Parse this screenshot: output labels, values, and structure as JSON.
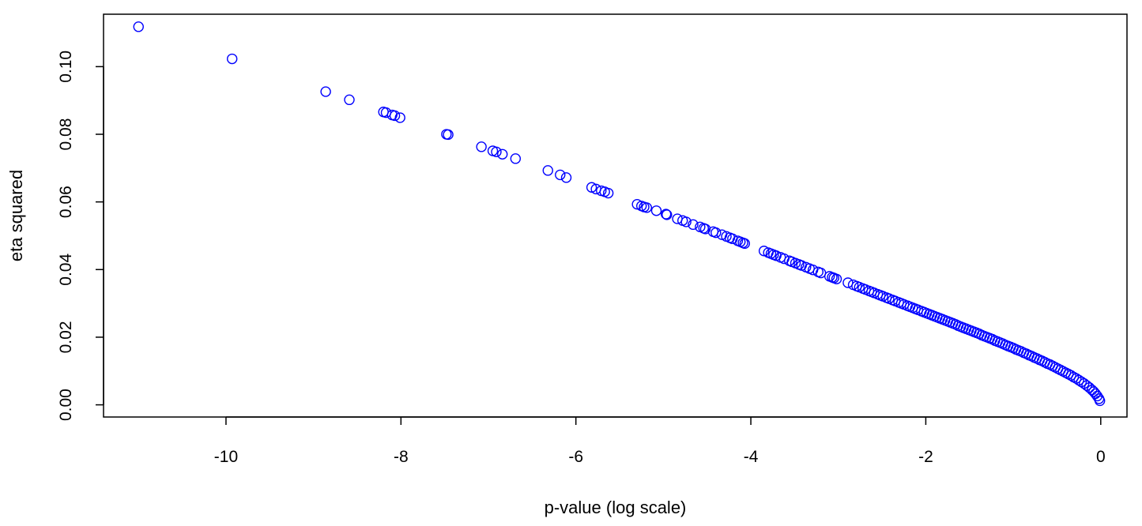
{
  "chart_data": {
    "type": "scatter",
    "xlabel": "p-value (log scale)",
    "ylabel": "eta squared",
    "xlim": [
      -11.4,
      0.3
    ],
    "ylim": [
      -0.0036,
      0.1155
    ],
    "x_ticks": [
      {
        "value": -10,
        "label": "-10"
      },
      {
        "value": -8,
        "label": "-8"
      },
      {
        "value": -6,
        "label": "-6"
      },
      {
        "value": -4,
        "label": "-4"
      },
      {
        "value": -2,
        "label": "-2"
      },
      {
        "value": 0,
        "label": "0"
      }
    ],
    "y_ticks": [
      {
        "value": 0.0,
        "label": "0.00"
      },
      {
        "value": 0.02,
        "label": "0.02"
      },
      {
        "value": 0.04,
        "label": "0.04"
      },
      {
        "value": 0.06,
        "label": "0.06"
      },
      {
        "value": 0.08,
        "label": "0.08"
      },
      {
        "value": 0.1,
        "label": "0.10"
      }
    ],
    "marker": "open-circle",
    "color": "#0000ff",
    "points": [
      [
        -11.0,
        0.1118
      ],
      [
        -9.93,
        0.1023
      ],
      [
        -8.86,
        0.0926
      ],
      [
        -8.59,
        0.0902
      ],
      [
        -8.2,
        0.0866
      ],
      [
        -8.17,
        0.0864
      ],
      [
        -8.1,
        0.0857
      ],
      [
        -8.07,
        0.0855
      ],
      [
        -8.01,
        0.0849
      ],
      [
        -7.48,
        0.08
      ],
      [
        -7.46,
        0.0799
      ],
      [
        -7.08,
        0.0763
      ],
      [
        -6.95,
        0.0751
      ],
      [
        -6.91,
        0.0748
      ],
      [
        -6.84,
        0.0741
      ],
      [
        -6.69,
        0.0728
      ],
      [
        -6.32,
        0.0693
      ],
      [
        -6.18,
        0.068
      ],
      [
        -6.11,
        0.0672
      ],
      [
        -5.82,
        0.0643
      ],
      [
        -5.77,
        0.0638
      ],
      [
        -5.71,
        0.0633
      ],
      [
        -5.67,
        0.063
      ],
      [
        -5.63,
        0.0626
      ],
      [
        -5.3,
        0.0593
      ],
      [
        -5.25,
        0.0588
      ],
      [
        -5.22,
        0.0585
      ],
      [
        -5.19,
        0.0583
      ],
      [
        -5.08,
        0.0574
      ],
      [
        -4.97,
        0.0564
      ],
      [
        -4.96,
        0.0562
      ],
      [
        -4.84,
        0.055
      ],
      [
        -4.78,
        0.0545
      ],
      [
        -4.74,
        0.0541
      ],
      [
        -4.66,
        0.0533
      ],
      [
        -4.58,
        0.0526
      ],
      [
        -4.54,
        0.0522
      ],
      [
        -4.52,
        0.052
      ],
      [
        -4.43,
        0.0512
      ],
      [
        -4.4,
        0.0509
      ],
      [
        -4.33,
        0.0503
      ],
      [
        -4.28,
        0.0498
      ],
      [
        -4.24,
        0.0494
      ],
      [
        -4.21,
        0.0491
      ],
      [
        -4.15,
        0.0485
      ],
      [
        -4.12,
        0.0482
      ],
      [
        -4.09,
        0.0479
      ],
      [
        -4.07,
        0.0477
      ],
      [
        -3.85,
        0.0455
      ],
      [
        -3.8,
        0.045
      ],
      [
        -3.77,
        0.0447
      ],
      [
        -3.74,
        0.0444
      ],
      [
        -3.71,
        0.0441
      ],
      [
        -3.66,
        0.0436
      ],
      [
        -3.62,
        0.0432
      ],
      [
        -3.56,
        0.0426
      ],
      [
        -3.53,
        0.0423
      ],
      [
        -3.49,
        0.0419
      ],
      [
        -3.45,
        0.0415
      ],
      [
        -3.42,
        0.0412
      ],
      [
        -3.37,
        0.0407
      ],
      [
        -3.33,
        0.0403
      ],
      [
        -3.29,
        0.0399
      ],
      [
        -3.23,
        0.0393
      ],
      [
        -3.2,
        0.039
      ],
      [
        -3.1,
        0.038
      ],
      [
        -3.07,
        0.0377
      ],
      [
        -3.05,
        0.0375
      ],
      [
        -3.02,
        0.0372
      ],
      [
        -2.89,
        0.0361
      ],
      [
        -2.83,
        0.0355
      ],
      [
        -2.79,
        0.0351
      ],
      [
        -2.76,
        0.0348
      ],
      [
        -2.72,
        0.0344
      ],
      [
        -2.69,
        0.0341
      ],
      [
        -2.65,
        0.0337
      ],
      [
        -2.62,
        0.0334
      ],
      [
        -2.59,
        0.0331
      ],
      [
        -2.55,
        0.0327
      ],
      [
        -2.52,
        0.0324
      ],
      [
        -2.49,
        0.0321
      ],
      [
        -2.45,
        0.0317
      ],
      [
        -2.42,
        0.0314
      ],
      [
        -2.38,
        0.031
      ],
      [
        -2.35,
        0.0307
      ],
      [
        -2.31,
        0.0303
      ],
      [
        -2.28,
        0.03
      ],
      [
        -2.25,
        0.0297
      ],
      [
        -2.21,
        0.0293
      ],
      [
        -2.18,
        0.029
      ],
      [
        -2.15,
        0.0287
      ],
      [
        -2.12,
        0.0284
      ],
      [
        -2.09,
        0.0281
      ],
      [
        -2.05,
        0.0277
      ],
      [
        -2.02,
        0.0274
      ],
      [
        -1.99,
        0.0271
      ],
      [
        -1.96,
        0.0268
      ],
      [
        -1.93,
        0.0265
      ],
      [
        -1.9,
        0.0262
      ],
      [
        -1.87,
        0.0259
      ],
      [
        -1.84,
        0.0256
      ],
      [
        -1.81,
        0.0253
      ],
      [
        -1.78,
        0.025
      ],
      [
        -1.75,
        0.0247
      ],
      [
        -1.72,
        0.0244
      ],
      [
        -1.69,
        0.0241
      ],
      [
        -1.66,
        0.0238
      ],
      [
        -1.63,
        0.0234
      ],
      [
        -1.6,
        0.0231
      ],
      [
        -1.57,
        0.0228
      ],
      [
        -1.54,
        0.0225
      ],
      [
        -1.51,
        0.0222
      ],
      [
        -1.48,
        0.0219
      ],
      [
        -1.45,
        0.0216
      ],
      [
        -1.42,
        0.0213
      ],
      [
        -1.39,
        0.021
      ],
      [
        -1.36,
        0.0206
      ],
      [
        -1.33,
        0.0203
      ],
      [
        -1.3,
        0.02
      ],
      [
        -1.27,
        0.0197
      ],
      [
        -1.24,
        0.0194
      ],
      [
        -1.21,
        0.019
      ],
      [
        -1.18,
        0.0187
      ],
      [
        -1.15,
        0.0184
      ],
      [
        -1.12,
        0.0181
      ],
      [
        -1.09,
        0.0177
      ],
      [
        -1.06,
        0.0174
      ],
      [
        -1.03,
        0.0171
      ],
      [
        -1.0,
        0.0168
      ],
      [
        -0.97,
        0.0164
      ],
      [
        -0.94,
        0.0161
      ],
      [
        -0.91,
        0.0158
      ],
      [
        -0.88,
        0.0154
      ],
      [
        -0.85,
        0.0151
      ],
      [
        -0.82,
        0.0147
      ],
      [
        -0.79,
        0.0144
      ],
      [
        -0.76,
        0.014
      ],
      [
        -0.73,
        0.0137
      ],
      [
        -0.7,
        0.0133
      ],
      [
        -0.67,
        0.013
      ],
      [
        -0.64,
        0.0126
      ],
      [
        -0.61,
        0.0122
      ],
      [
        -0.58,
        0.0119
      ],
      [
        -0.55,
        0.0115
      ],
      [
        -0.52,
        0.0111
      ],
      [
        -0.49,
        0.0107
      ],
      [
        -0.46,
        0.0103
      ],
      [
        -0.43,
        0.0099
      ],
      [
        -0.4,
        0.0095
      ],
      [
        -0.37,
        0.0091
      ],
      [
        -0.34,
        0.0087
      ],
      [
        -0.31,
        0.0082
      ],
      [
        -0.28,
        0.0078
      ],
      [
        -0.25,
        0.0073
      ],
      [
        -0.22,
        0.0068
      ],
      [
        -0.19,
        0.0063
      ],
      [
        -0.16,
        0.0057
      ],
      [
        -0.13,
        0.0051
      ],
      [
        -0.1,
        0.0044
      ],
      [
        -0.08,
        0.0039
      ],
      [
        -0.06,
        0.0033
      ],
      [
        -0.04,
        0.0026
      ],
      [
        -0.02,
        0.0018
      ],
      [
        -0.01,
        0.0012
      ]
    ]
  }
}
